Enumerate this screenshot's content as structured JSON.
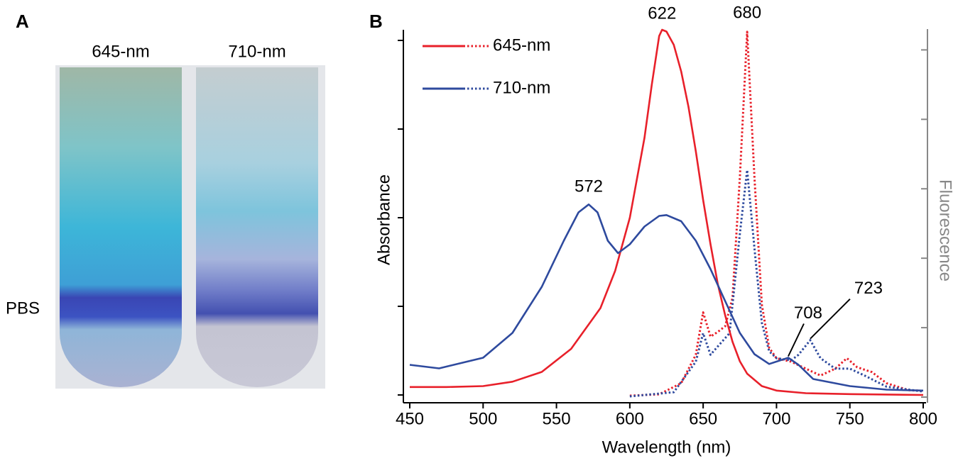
{
  "photo": {
    "label": "A",
    "tubes": [
      "645-nm",
      "710-nm"
    ],
    "band_label": "PBS"
  },
  "chart_data": {
    "type": "line",
    "panel_label": "B",
    "x_label": "Wavelength (nm)",
    "y_label": "Absorbance",
    "y2_label": "Fluorescence",
    "xlim": [
      450,
      800
    ],
    "xticks": [
      450,
      500,
      550,
      600,
      650,
      700,
      750,
      800
    ],
    "ylim": [
      0,
      4.2
    ],
    "yticks": [
      0,
      1,
      2,
      3,
      4
    ],
    "y2lim": [
      0,
      5.3
    ],
    "y2ticks": [
      0,
      1,
      2,
      3,
      4,
      5
    ],
    "series": [
      {
        "name": "645-nm",
        "color": "#e8202a",
        "x": [
          450,
          475,
          500,
          520,
          540,
          560,
          580,
          590,
          600,
          610,
          615,
          620,
          622,
          625,
          630,
          635,
          640,
          645,
          650,
          655,
          660,
          665,
          670,
          675,
          680,
          690,
          700,
          720,
          750,
          800
        ],
        "values": [
          0.09,
          0.09,
          0.1,
          0.15,
          0.26,
          0.52,
          0.98,
          1.4,
          2.0,
          2.9,
          3.5,
          4.05,
          4.12,
          4.1,
          3.95,
          3.65,
          3.25,
          2.75,
          2.2,
          1.7,
          1.25,
          0.9,
          0.6,
          0.38,
          0.24,
          0.1,
          0.05,
          0.02,
          0.01,
          0
        ],
        "fluorescence": {
          "axis": "y2",
          "x": [
            600,
            620,
            635,
            645,
            650,
            655,
            660,
            665,
            670,
            675,
            680,
            685,
            690,
            695,
            700,
            710,
            720,
            730,
            740,
            748,
            755,
            765,
            775,
            790,
            800
          ],
          "values": [
            0.02,
            0.04,
            0.2,
            0.61,
            1.22,
            0.87,
            0.94,
            1.02,
            1.43,
            3.16,
            5.26,
            3.16,
            1.33,
            0.71,
            0.56,
            0.51,
            0.41,
            0.31,
            0.41,
            0.56,
            0.43,
            0.36,
            0.2,
            0.1,
            0.09
          ]
        }
      },
      {
        "name": "710-nm",
        "color": "#2e4a9e",
        "x": [
          450,
          470,
          500,
          520,
          540,
          555,
          565,
          572,
          578,
          585,
          592,
          600,
          610,
          620,
          625,
          635,
          645,
          655,
          665,
          675,
          685,
          695,
          708,
          715,
          725,
          750,
          775,
          800
        ],
        "values": [
          0.34,
          0.3,
          0.42,
          0.7,
          1.22,
          1.74,
          2.06,
          2.15,
          2.06,
          1.74,
          1.6,
          1.7,
          1.9,
          2.02,
          2.03,
          1.96,
          1.74,
          1.42,
          1.06,
          0.7,
          0.46,
          0.35,
          0.42,
          0.34,
          0.18,
          0.1,
          0.06,
          0.05
        ],
        "fluorescence": {
          "axis": "y2",
          "x": [
            600,
            630,
            645,
            650,
            655,
            660,
            668,
            675,
            680,
            685,
            690,
            695,
            700,
            710,
            715,
            723,
            730,
            740,
            750,
            760,
            775,
            800
          ],
          "values": [
            0.01,
            0.07,
            0.51,
            0.92,
            0.61,
            0.73,
            0.92,
            2.35,
            3.27,
            2.14,
            1.07,
            0.66,
            0.56,
            0.53,
            0.61,
            0.82,
            0.56,
            0.41,
            0.41,
            0.31,
            0.15,
            0.08
          ]
        }
      }
    ],
    "annotations": [
      {
        "x": 622,
        "y": 4.12,
        "axis": "y"
      },
      {
        "x": 680,
        "y": 5.26,
        "axis": "y2"
      },
      {
        "x": 572,
        "y": 2.15,
        "axis": "y"
      },
      {
        "x": 708,
        "y": 0.42,
        "axis": "y"
      },
      {
        "x": 723,
        "y": 0.82,
        "axis": "y2"
      }
    ]
  }
}
